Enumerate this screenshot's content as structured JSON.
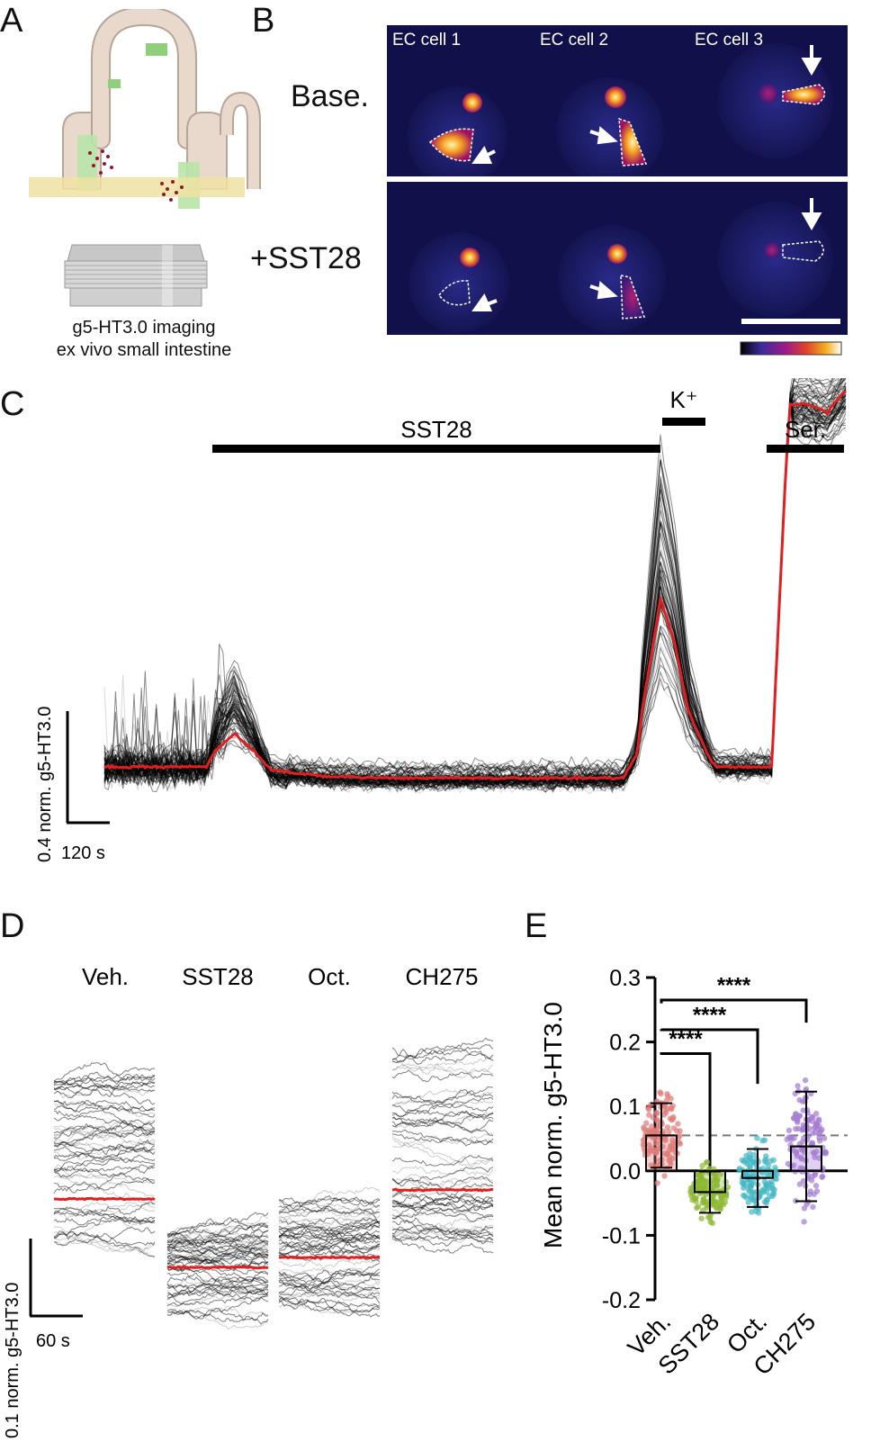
{
  "panels": {
    "a": "A",
    "b": "B",
    "c": "C",
    "d": "D",
    "e": "E"
  },
  "panel_a": {
    "caption_line1": "g5-HT3.0 imaging",
    "caption_line2": "ex vivo small intestine"
  },
  "panel_b": {
    "row_labels": [
      "Base.",
      "+SST28"
    ],
    "cell_labels": [
      "EC cell 1",
      "EC cell 2",
      "EC cell 3"
    ]
  },
  "panel_c": {
    "bars": [
      "SST28",
      "K⁺",
      "Ser."
    ],
    "scale_y": "0.4 norm. g5-HT3.0",
    "scale_x": "120 s"
  },
  "panel_d": {
    "conditions": [
      "Veh.",
      "SST28",
      "Oct.",
      "CH275"
    ],
    "scale_y": "0.1 norm. g5-HT3.0",
    "scale_x": "60 s"
  },
  "colors": {
    "mean_trace": "#e02020",
    "traces": "#000000",
    "veh": "#e07b78",
    "sst28": "#8cb830",
    "oct": "#45b8c4",
    "ch275": "#a37ad2"
  },
  "chart_data": [
    {
      "type": "line",
      "panel": "C",
      "series": [
        {
          "name": "mean",
          "x_s": [
            0,
            60,
            110,
            120,
            140,
            160,
            180,
            200,
            240,
            300,
            400,
            500,
            560,
            575,
            580,
            590,
            600,
            615,
            630,
            650,
            660,
            690,
            720,
            735,
            740,
            760,
            780,
            800
          ],
          "y": [
            0.0,
            0.0,
            0.0,
            0.06,
            0.12,
            0.06,
            -0.01,
            -0.02,
            -0.035,
            -0.04,
            -0.04,
            -0.04,
            -0.04,
            0.05,
            0.2,
            0.4,
            0.6,
            0.45,
            0.2,
            0.05,
            0.0,
            0.0,
            0.0,
            1.05,
            1.3,
            1.3,
            1.27,
            1.35
          ]
        }
      ]
    },
    {
      "type": "bar",
      "panel": "E",
      "categories": [
        "Veh.",
        "SST28",
        "Oct.",
        "CH275"
      ],
      "values": [
        0.055,
        -0.033,
        -0.011,
        0.038
      ],
      "sd": [
        0.05,
        0.032,
        0.045,
        0.085
      ],
      "ylabel": "Mean norm. g5-HT3.0",
      "ylim": [
        -0.2,
        0.3
      ],
      "yticks": [
        "0.3",
        "0.2",
        "0.1",
        "0.0",
        "-0.1",
        "-0.2"
      ],
      "reference_line": 0.055,
      "significance": [
        {
          "from": "Veh.",
          "to": "SST28",
          "label": "****"
        },
        {
          "from": "Veh.",
          "to": "Oct.",
          "label": "****"
        },
        {
          "from": "Veh.",
          "to": "CH275",
          "label": "****"
        }
      ]
    }
  ]
}
